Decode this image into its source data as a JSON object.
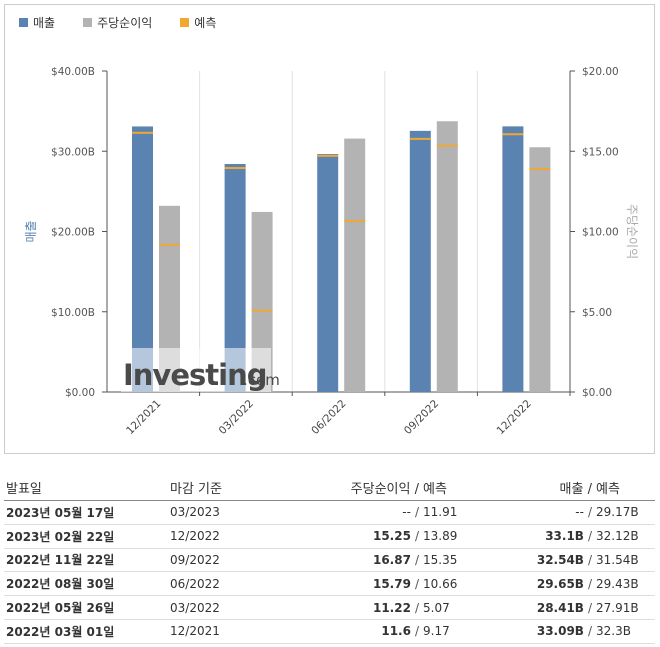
{
  "legend": {
    "revenue": "매출",
    "eps": "주당순이익",
    "forecast": "예측"
  },
  "colors": {
    "revenue": "#5b83b1",
    "eps": "#b3b3b3",
    "forecast": "#f0a830",
    "actual_highlight": "#d0021b"
  },
  "watermark": {
    "brand": "Investing",
    "suffix": ".com"
  },
  "chart_data": {
    "type": "bar",
    "categories": [
      "12/2021",
      "03/2022",
      "06/2022",
      "09/2022",
      "12/2022"
    ],
    "series": [
      {
        "name": "매출",
        "axis": "left",
        "values": [
          33.09,
          28.41,
          29.65,
          32.54,
          33.1
        ],
        "forecast": [
          32.3,
          27.91,
          29.43,
          31.54,
          32.12
        ]
      },
      {
        "name": "주당순이익",
        "axis": "right",
        "values": [
          11.6,
          11.22,
          15.79,
          16.87,
          15.25
        ],
        "forecast": [
          9.17,
          5.07,
          10.66,
          15.35,
          13.89
        ]
      }
    ],
    "left_axis": {
      "label": "매출",
      "min": 0,
      "max": 40,
      "ticks": [
        "$0.00",
        "$10.00B",
        "$20.00B",
        "$30.00B",
        "$40.00B"
      ]
    },
    "right_axis": {
      "label": "주당순이익",
      "min": 0,
      "max": 20,
      "ticks": [
        "$0.00",
        "$5.00",
        "$10.00",
        "$15.00",
        "$20.00"
      ]
    },
    "grid": "vertical",
    "legend_position": "top-left"
  },
  "table": {
    "headers": {
      "date": "발표일",
      "period": "마감 기준",
      "eps": "주당순이익",
      "eps_forecast": "예측",
      "revenue": "매출",
      "revenue_forecast": "예측",
      "slash": "/"
    },
    "rows": [
      {
        "date": "2023년 05월 17일",
        "period": "03/2023",
        "eps": "--",
        "eps_forecast": "11.91",
        "revenue": "--",
        "revenue_forecast": "29.17B",
        "eps_red": false,
        "rev_red": false
      },
      {
        "date": "2023년 02월 22일",
        "period": "12/2022",
        "eps": "15.25",
        "eps_forecast": "13.89",
        "revenue": "33.1B",
        "revenue_forecast": "32.12B",
        "eps_red": true,
        "rev_red": true
      },
      {
        "date": "2022년 11월 22일",
        "period": "09/2022",
        "eps": "16.87",
        "eps_forecast": "15.35",
        "revenue": "32.54B",
        "revenue_forecast": "31.54B",
        "eps_red": true,
        "rev_red": true
      },
      {
        "date": "2022년 08월 30일",
        "period": "06/2022",
        "eps": "15.79",
        "eps_forecast": "10.66",
        "revenue": "29.65B",
        "revenue_forecast": "29.43B",
        "eps_red": true,
        "rev_red": true
      },
      {
        "date": "2022년 05월 26일",
        "period": "03/2022",
        "eps": "11.22",
        "eps_forecast": "5.07",
        "revenue": "28.41B",
        "revenue_forecast": "27.91B",
        "eps_red": true,
        "rev_red": true
      },
      {
        "date": "2022년 03월 01일",
        "period": "12/2021",
        "eps": "11.6",
        "eps_forecast": "9.17",
        "revenue": "33.09B",
        "revenue_forecast": "32.3B",
        "eps_red": true,
        "rev_red": true
      }
    ]
  }
}
